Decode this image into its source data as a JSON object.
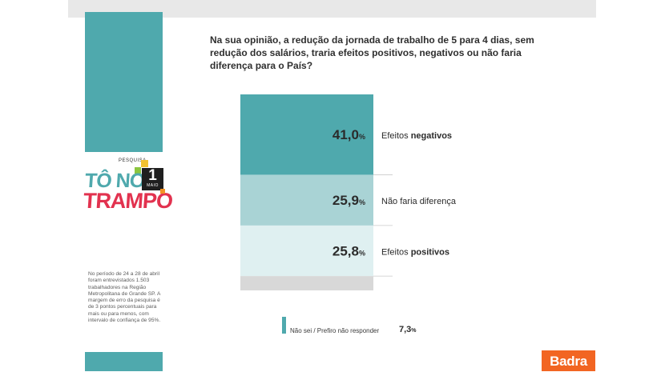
{
  "question": "Na sua opinião, a redução da jornada de trabalho de 5 para 4 dias, sem redução dos salários, traria efeitos positivos, negativos ou não faria diferença para o País?",
  "logo": {
    "kicker": "PESQUISA",
    "line1": "TÔ NO",
    "line2": "TRAMPO",
    "badge_number": "1",
    "badge_month": "MAIO"
  },
  "method_note": "No período de 24 a 28 de abril foram entrevistados 1.503 trabalhadores na Região Metropolitana de Grande SP. A margem de erro da pesquisa é de 3 pontos percentuais para mais ou para menos, com intervalo de confiança de 95%.",
  "brand": "Badra",
  "colors": {
    "negativos": "#4fa9ad",
    "nao_faria": "#a9d3d5",
    "positivos": "#dff0f1",
    "nao_sei": "#d8d8d8",
    "accent": "#f26522"
  },
  "chart_data": {
    "type": "bar",
    "stacked": true,
    "unit": "%",
    "segments": [
      {
        "value": 41.0,
        "value_text": "41,0",
        "label_normal": "Efeitos ",
        "label_bold": "negativos",
        "color": "#4fa9ad"
      },
      {
        "value": 25.9,
        "value_text": "25,9",
        "label_normal": "Não faria diferença",
        "label_bold": "",
        "color": "#a9d3d5"
      },
      {
        "value": 25.8,
        "value_text": "25,8",
        "label_normal": "Efeitos ",
        "label_bold": "positivos",
        "color": "#dff0f1"
      },
      {
        "value": 7.3,
        "value_text": "7,3",
        "label_normal": "Não sei / Prefiro não responder",
        "label_bold": "",
        "color": "#d8d8d8"
      }
    ],
    "legend": {
      "label": "Não sei / Prefiro não responder",
      "value_text": "7,3",
      "unit": "%"
    }
  }
}
